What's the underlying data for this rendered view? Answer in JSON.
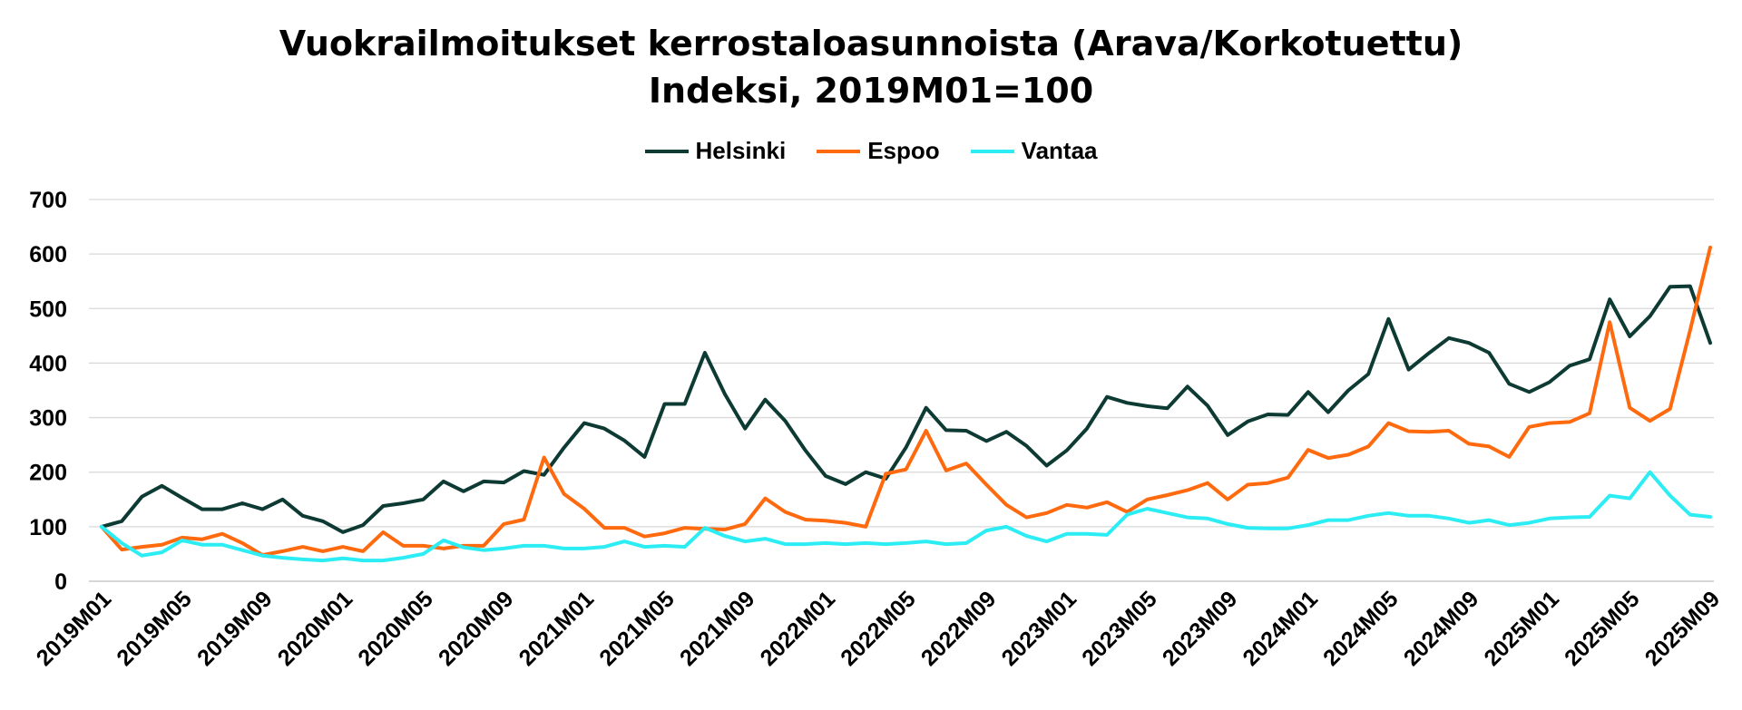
{
  "chart_data": {
    "type": "line",
    "title": "Vuokrailmoitukset kerrostaloasunnoista (Arava/Korkotuettu)",
    "subtitle": "Indeksi, 2019M01=100",
    "ylim": [
      0,
      700
    ],
    "yticks": [
      0,
      100,
      200,
      300,
      400,
      500,
      600,
      700
    ],
    "grid": true,
    "legend_position": "top",
    "x_tick_labels": [
      "2019M01",
      "2019M05",
      "2019M09",
      "2020M01",
      "2020M05",
      "2020M09",
      "2021M01",
      "2021M05",
      "2021M09",
      "2022M01",
      "2022M05",
      "2022M09",
      "2023M01",
      "2023M05",
      "2023M09",
      "2024M01",
      "2024M05",
      "2024M09",
      "2025M01",
      "2025M05",
      "2025M09"
    ],
    "x_start": "2019M01",
    "x_end": "2025M09",
    "series": [
      {
        "name": "Helsinki",
        "color": "#0d3b34",
        "values": [
          100,
          110,
          155,
          175,
          153,
          132,
          132,
          143,
          132,
          150,
          120,
          110,
          90,
          103,
          138,
          143,
          150,
          183,
          165,
          183,
          181,
          202,
          195,
          245,
          290,
          280,
          258,
          228,
          325,
          325,
          419,
          343,
          280,
          333,
          294,
          240,
          193,
          178,
          200,
          188,
          245,
          318,
          277,
          276,
          257,
          274,
          248,
          212,
          240,
          280,
          338,
          327,
          321,
          317,
          357,
          322,
          268,
          293,
          306,
          305,
          347,
          310,
          350,
          380,
          481,
          388,
          418,
          446,
          437,
          419,
          362,
          347,
          365,
          395,
          407,
          517,
          449,
          486,
          540,
          541,
          437
        ]
      },
      {
        "name": "Espoo",
        "color": "#ff6a0e",
        "values": [
          100,
          58,
          63,
          67,
          80,
          77,
          87,
          70,
          48,
          55,
          63,
          55,
          63,
          55,
          90,
          65,
          65,
          60,
          65,
          65,
          105,
          113,
          227,
          160,
          133,
          98,
          98,
          82,
          88,
          98,
          96,
          95,
          105,
          152,
          127,
          113,
          111,
          107,
          100,
          197,
          205,
          276,
          203,
          216,
          177,
          140,
          117,
          125,
          140,
          135,
          145,
          127,
          150,
          158,
          167,
          180,
          150,
          177,
          180,
          190,
          241,
          226,
          232,
          247,
          290,
          275,
          274,
          276,
          252,
          247,
          228,
          283,
          290,
          292,
          308,
          475,
          318,
          294,
          316,
          460,
          612
        ]
      },
      {
        "name": "Vantaa",
        "color": "#2dedf4",
        "values": [
          100,
          70,
          47,
          53,
          75,
          67,
          67,
          57,
          47,
          43,
          40,
          38,
          42,
          38,
          38,
          43,
          50,
          75,
          62,
          57,
          60,
          65,
          65,
          60,
          60,
          63,
          73,
          63,
          65,
          63,
          98,
          83,
          73,
          78,
          68,
          68,
          70,
          68,
          70,
          68,
          70,
          73,
          68,
          70,
          93,
          100,
          83,
          73,
          87,
          87,
          85,
          122,
          133,
          125,
          117,
          115,
          105,
          98,
          97,
          97,
          103,
          112,
          112,
          120,
          125,
          120,
          120,
          115,
          107,
          112,
          103,
          107,
          115,
          117,
          118,
          157,
          152,
          200,
          157,
          122,
          118
        ]
      }
    ]
  }
}
